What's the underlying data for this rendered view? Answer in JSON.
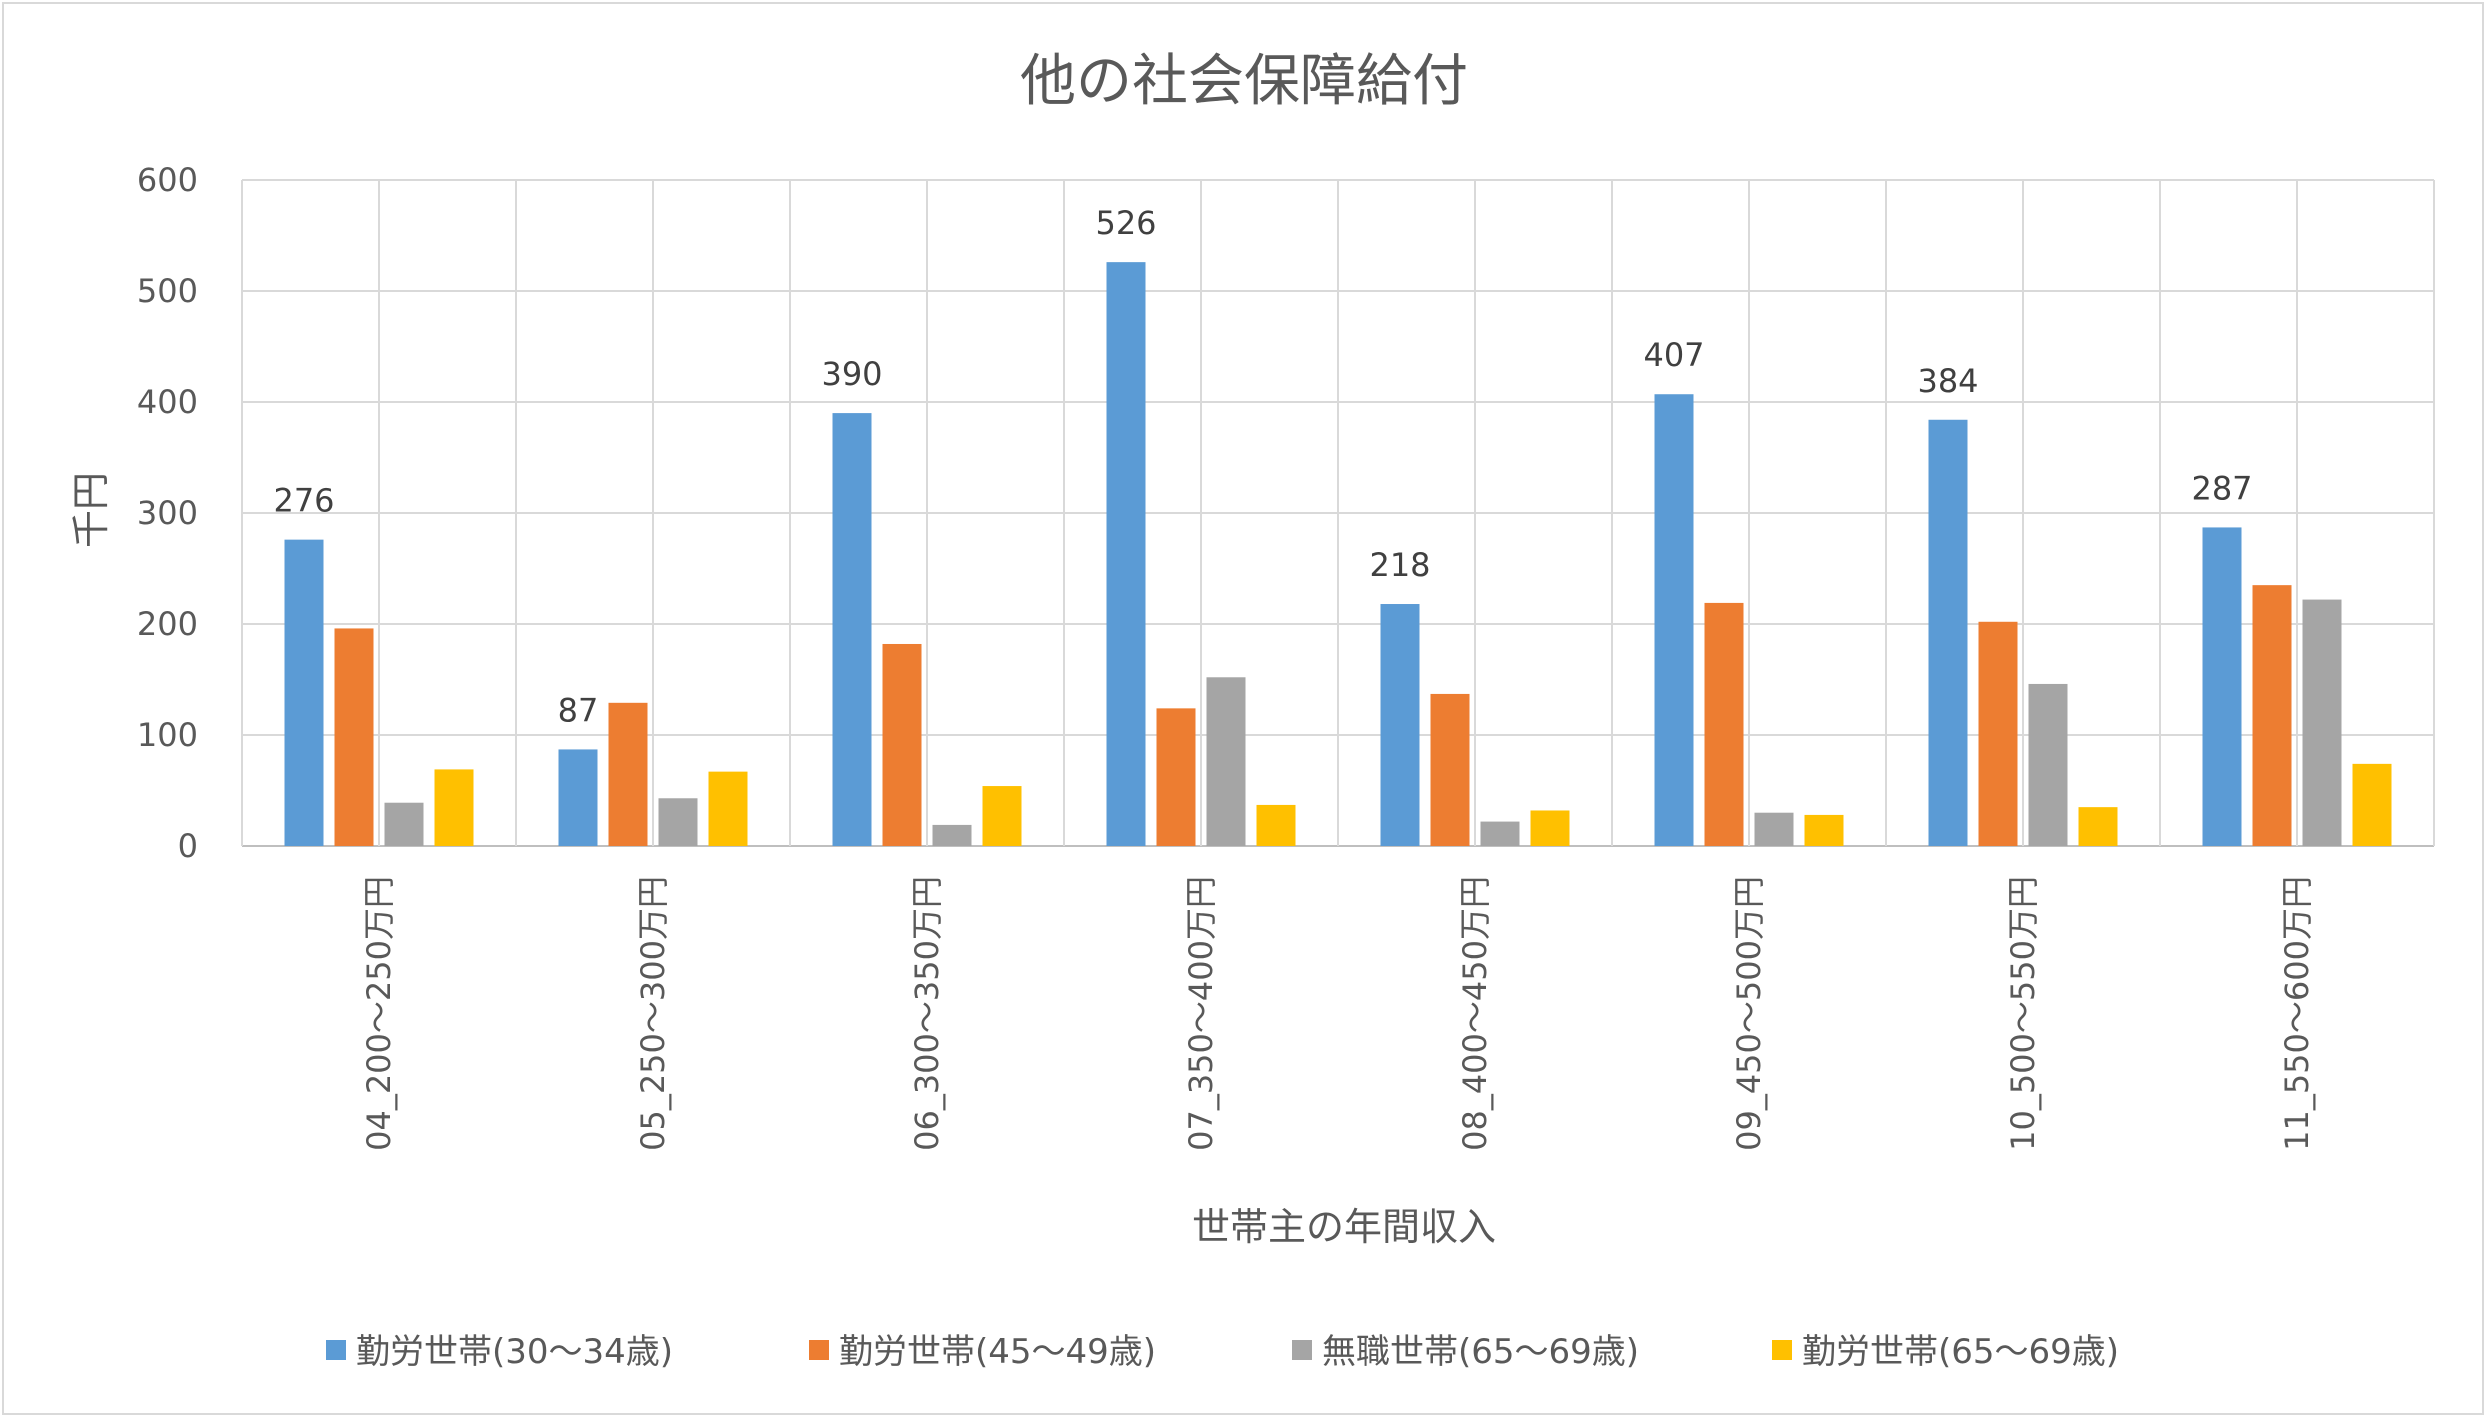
{
  "chart_data": {
    "type": "bar",
    "title": "他の社会保障給付",
    "xlabel": "世帯主の年間収入",
    "ylabel": "千円",
    "ylim": [
      0,
      600
    ],
    "yticks": [
      0,
      100,
      200,
      300,
      400,
      500,
      600
    ],
    "grid": true,
    "legend_position": "bottom",
    "categories": [
      "04_200～250万円",
      "05_250～300万円",
      "06_300～350万円",
      "07_350～400万円",
      "08_400～450万円",
      "09_450～500万円",
      "10_500～550万円",
      "11_550～600万円"
    ],
    "series": [
      {
        "name": "勤労世帯(30～34歳)",
        "color": "#5b9bd5",
        "values": [
          276,
          87,
          390,
          526,
          218,
          407,
          384,
          287
        ],
        "show_labels": true
      },
      {
        "name": "勤労世帯(45～49歳)",
        "color": "#ed7d31",
        "values": [
          196,
          129,
          182,
          124,
          137,
          219,
          202,
          235
        ],
        "show_labels": false
      },
      {
        "name": "無職世帯(65～69歳)",
        "color": "#a5a5a5",
        "values": [
          39,
          43,
          19,
          152,
          22,
          30,
          146,
          222
        ],
        "show_labels": false
      },
      {
        "name": "勤労世帯(65～69歳)",
        "color": "#ffc000",
        "values": [
          69,
          67,
          54,
          37,
          32,
          28,
          35,
          74
        ],
        "show_labels": false
      }
    ]
  }
}
